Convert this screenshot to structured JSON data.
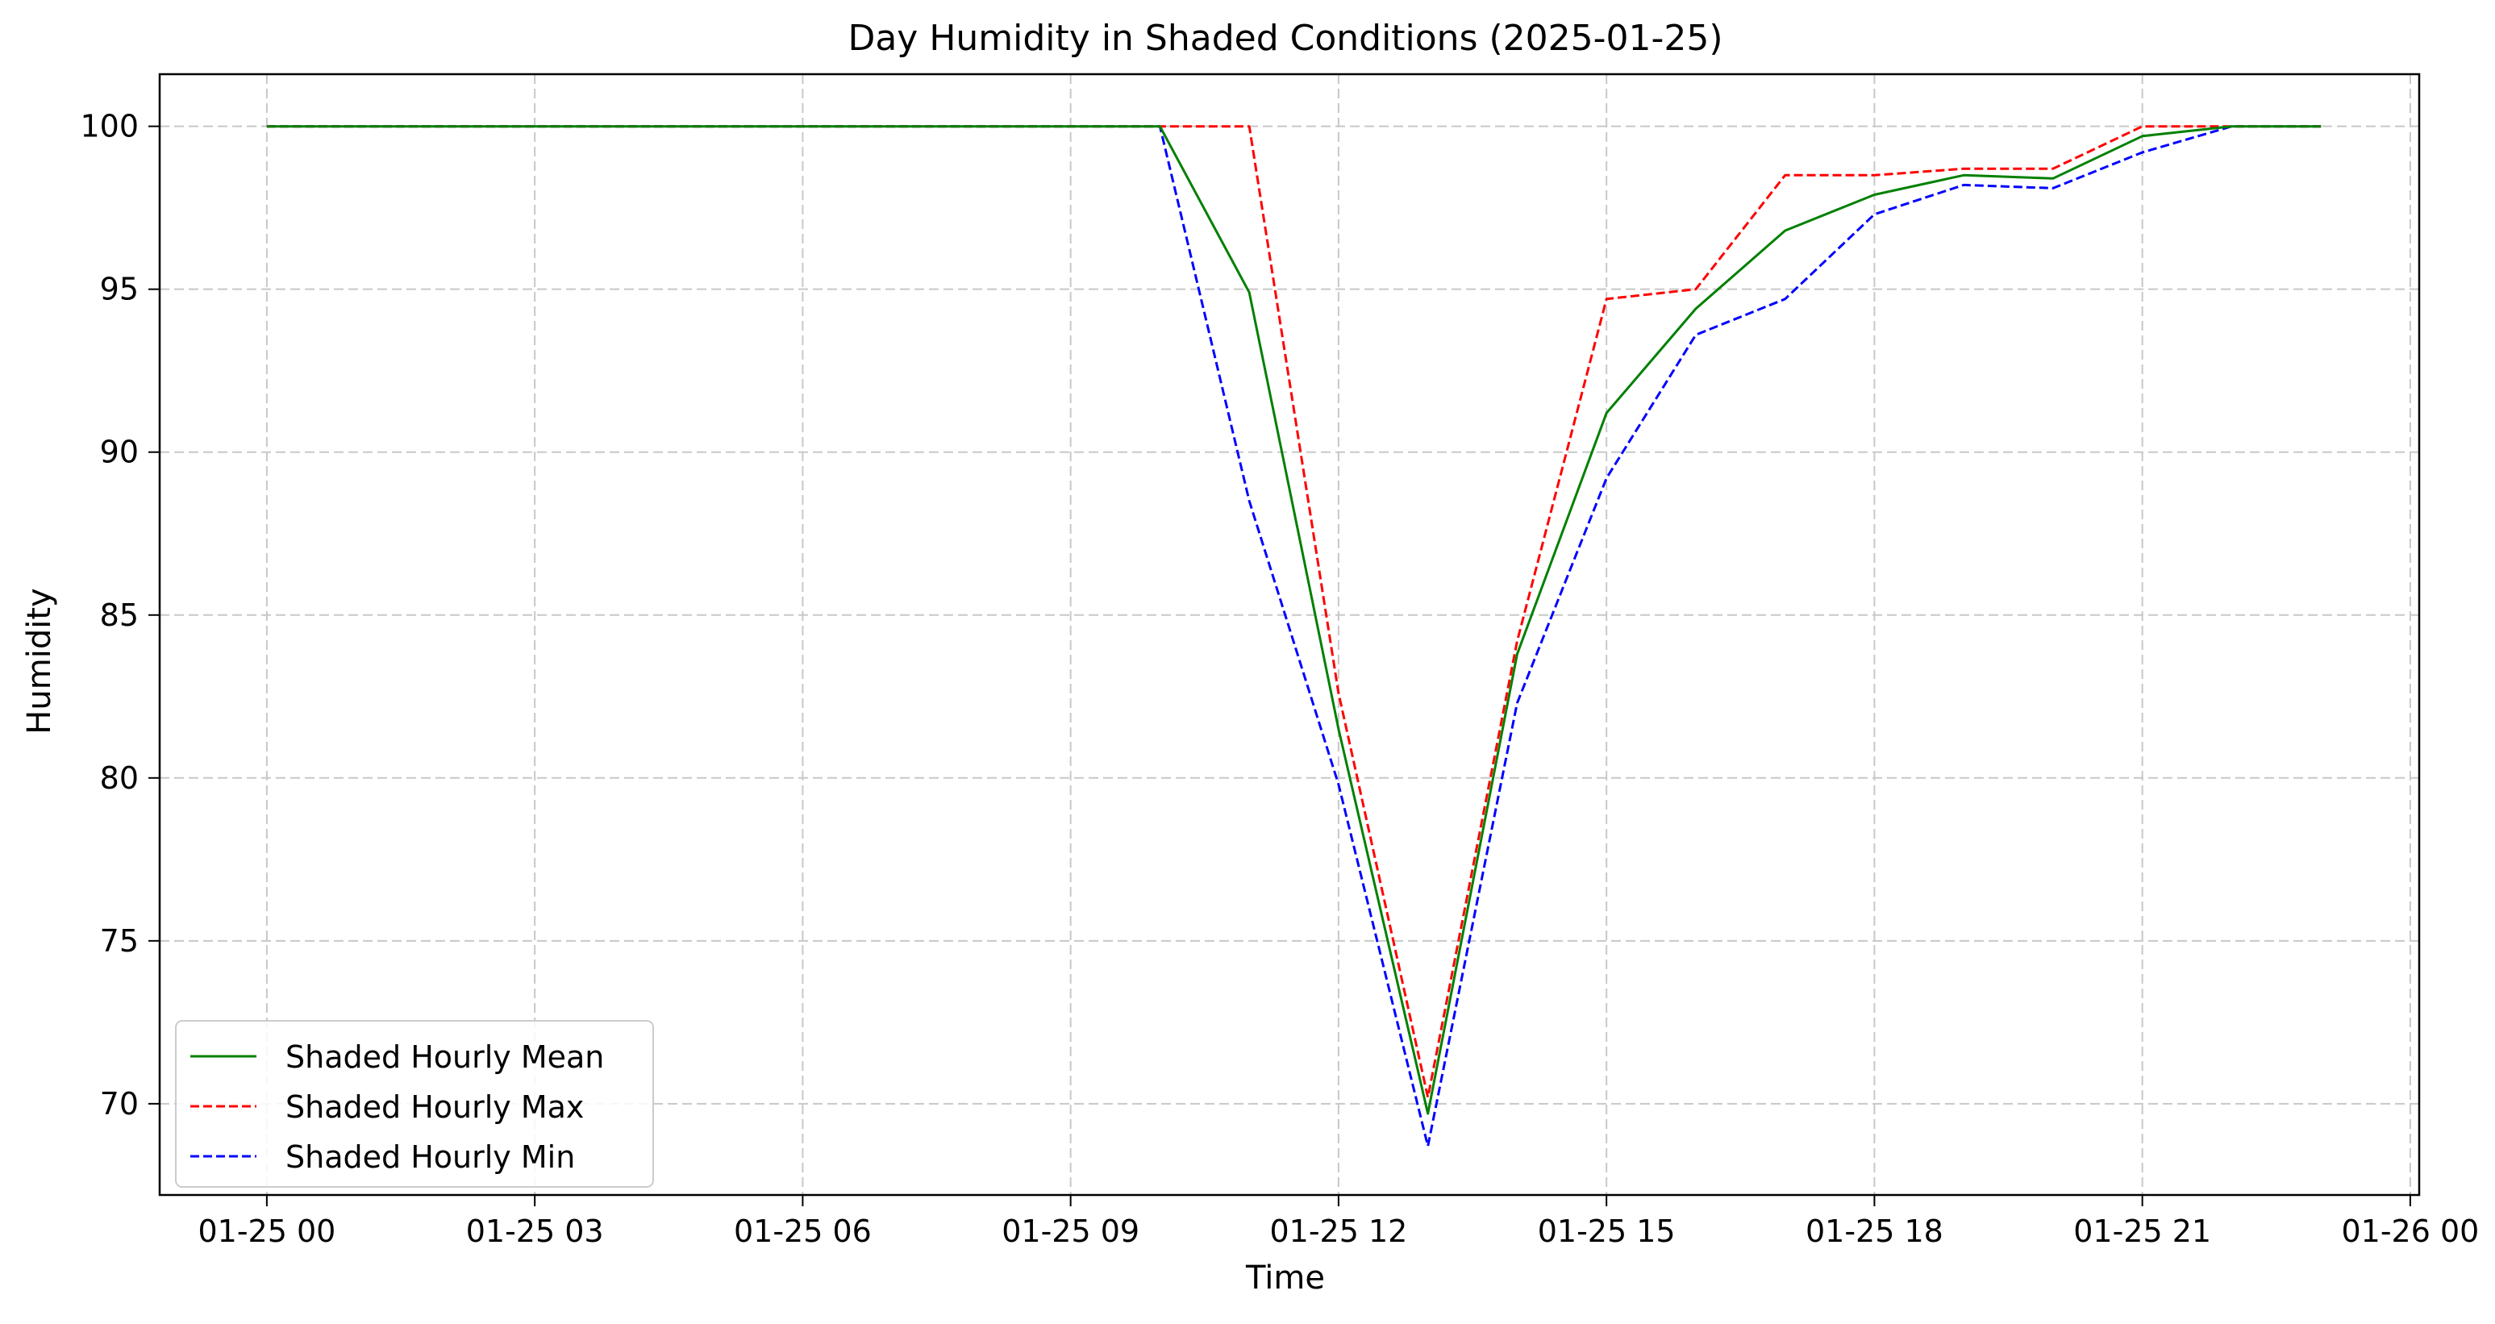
{
  "chart_data": {
    "type": "line",
    "title": "Day Humidity in Shaded Conditions (2025-01-25)",
    "xlabel": "Time",
    "ylabel": "Humidity",
    "x": [
      "01-25 00",
      "01-25 01",
      "01-25 02",
      "01-25 03",
      "01-25 04",
      "01-25 05",
      "01-25 06",
      "01-25 07",
      "01-25 08",
      "01-25 09",
      "01-25 10",
      "01-25 11",
      "01-25 12",
      "01-25 13",
      "01-25 14",
      "01-25 15",
      "01-25 16",
      "01-25 17",
      "01-25 18",
      "01-25 19",
      "01-25 20",
      "01-25 21",
      "01-25 22",
      "01-25 23"
    ],
    "x_hours": [
      0,
      1,
      2,
      3,
      4,
      5,
      6,
      7,
      8,
      9,
      10,
      11,
      12,
      13,
      14,
      15,
      16,
      17,
      18,
      19,
      20,
      21,
      22,
      23
    ],
    "xticks": [
      {
        "hour": 0,
        "label": "01-25 00"
      },
      {
        "hour": 3,
        "label": "01-25 03"
      },
      {
        "hour": 6,
        "label": "01-25 06"
      },
      {
        "hour": 9,
        "label": "01-25 09"
      },
      {
        "hour": 12,
        "label": "01-25 12"
      },
      {
        "hour": 15,
        "label": "01-25 15"
      },
      {
        "hour": 18,
        "label": "01-25 18"
      },
      {
        "hour": 21,
        "label": "01-25 21"
      },
      {
        "hour": 24,
        "label": "01-26 00"
      }
    ],
    "xlim": [
      -1.2,
      24.1
    ],
    "ylim": [
      67.2,
      101.6
    ],
    "yticks": [
      70,
      75,
      80,
      85,
      90,
      95,
      100
    ],
    "grid": true,
    "legend_position": "lower-left",
    "series": [
      {
        "name": "Shaded Hourly Mean",
        "color": "#008000",
        "dash": "solid",
        "values": [
          100,
          100,
          100,
          100,
          100,
          100,
          100,
          100,
          100,
          100,
          100,
          94.9,
          81.5,
          69.7,
          83.8,
          91.2,
          94.4,
          96.8,
          97.9,
          98.5,
          98.4,
          99.7,
          100,
          100
        ]
      },
      {
        "name": "Shaded Hourly Max",
        "color": "#ff0000",
        "dash": "dashed",
        "values": [
          100,
          100,
          100,
          100,
          100,
          100,
          100,
          100,
          100,
          100,
          100,
          100,
          82.6,
          70.2,
          84.2,
          94.7,
          95.0,
          98.5,
          98.5,
          98.7,
          98.7,
          100,
          100,
          100
        ]
      },
      {
        "name": "Shaded Hourly Min",
        "color": "#0000ff",
        "dash": "dashed",
        "values": [
          100,
          100,
          100,
          100,
          100,
          100,
          100,
          100,
          100,
          100,
          100,
          88.5,
          79.8,
          68.7,
          82.3,
          89.2,
          93.6,
          94.7,
          97.3,
          98.2,
          98.1,
          99.2,
          100,
          100
        ]
      }
    ]
  }
}
